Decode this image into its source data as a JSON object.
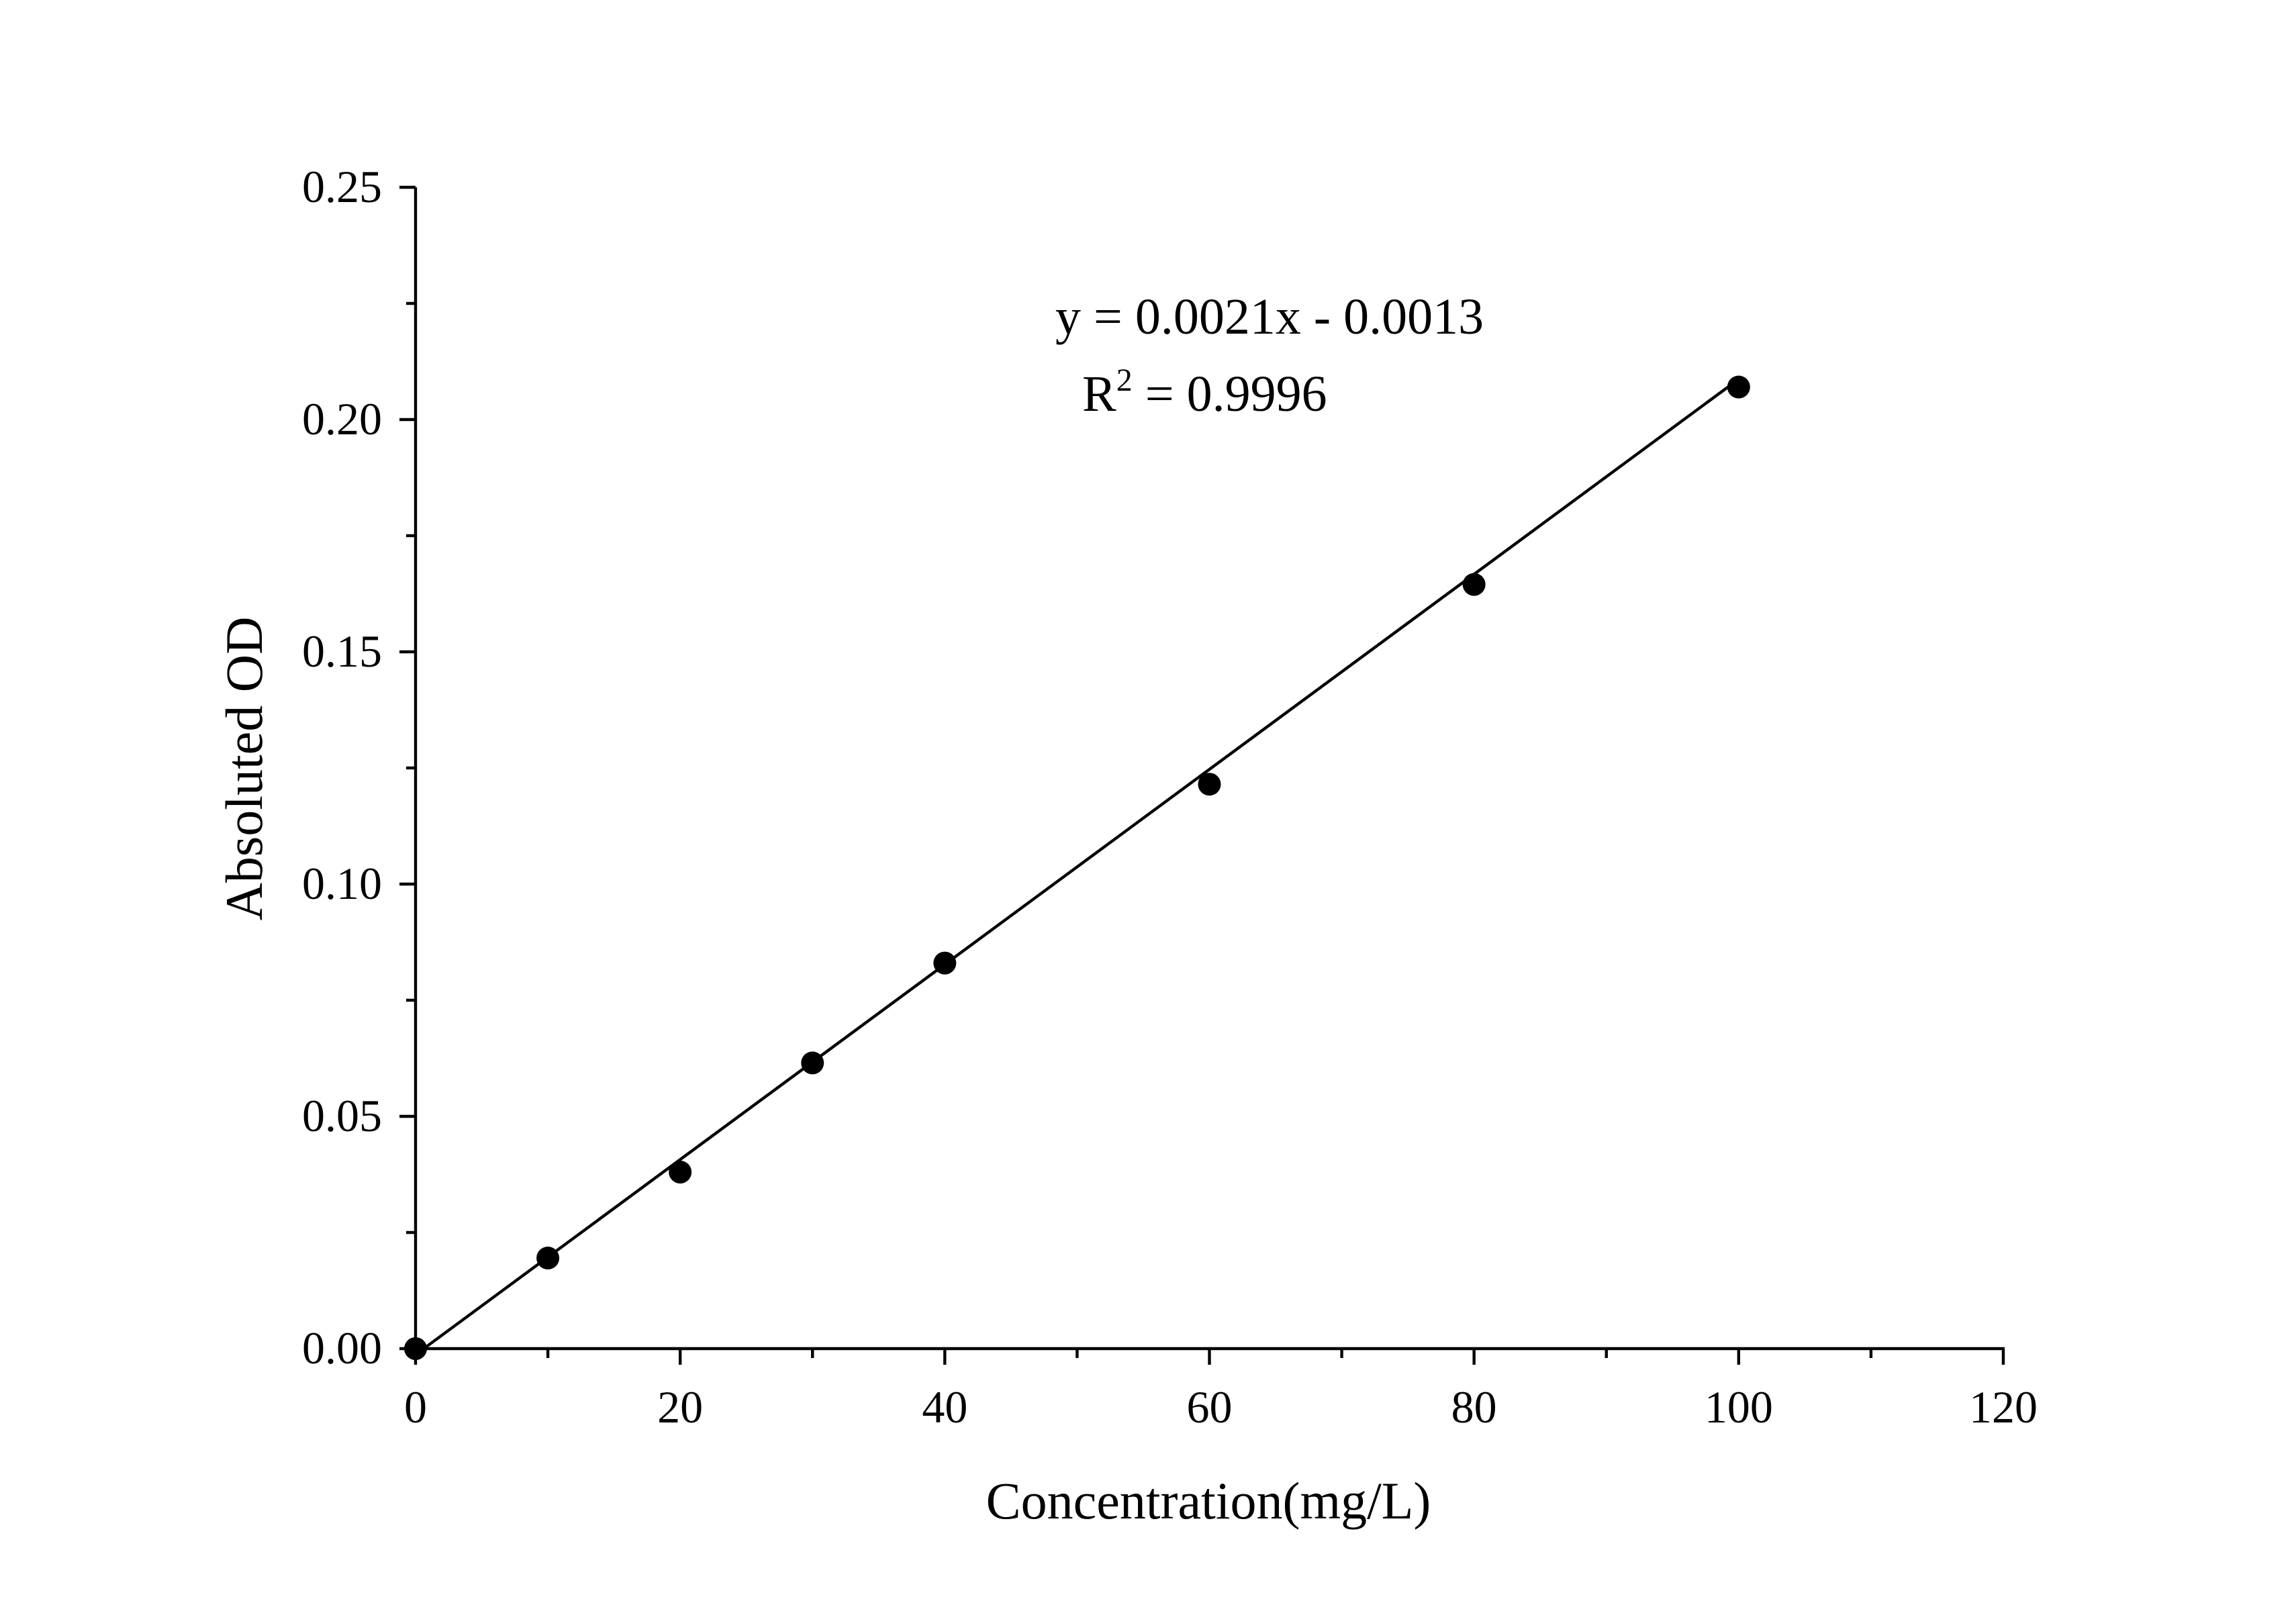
{
  "chart_data": {
    "type": "scatter",
    "title": "",
    "xlabel": "Concentration(mg/L)",
    "ylabel": "Absoluted OD",
    "xlim": [
      0,
      120
    ],
    "ylim": [
      0,
      0.25
    ],
    "x_ticks": [
      0,
      20,
      40,
      60,
      80,
      100,
      120
    ],
    "x_tick_labels": [
      "0",
      "20",
      "40",
      "60",
      "80",
      "100",
      "120"
    ],
    "x_minor_ticks": [
      10,
      30,
      50,
      70,
      90,
      110
    ],
    "y_ticks": [
      0,
      0.05,
      0.1,
      0.15,
      0.2,
      0.25
    ],
    "y_tick_labels": [
      "0.00",
      "0.05",
      "0.10",
      "0.15",
      "0.20",
      "0.25"
    ],
    "y_minor_ticks": [
      0.025,
      0.075,
      0.125,
      0.175,
      0.225
    ],
    "grid": false,
    "series": [
      {
        "x": [
          0,
          10,
          20,
          30,
          40,
          60,
          80,
          100
        ],
        "y": [
          0.0,
          0.0195,
          0.038,
          0.0615,
          0.083,
          0.1215,
          0.1645,
          0.207
        ],
        "marker": "filled-circle",
        "color": "#000000"
      }
    ],
    "fit": {
      "slope": 0.0021,
      "intercept": -0.0013,
      "x_range": [
        0,
        100
      ],
      "color": "#000000"
    },
    "annotations": {
      "equation": "y = 0.0021x - 0.0013",
      "r_label": "R",
      "r_superscript": "2",
      "r_value": " = 0.9996"
    }
  }
}
